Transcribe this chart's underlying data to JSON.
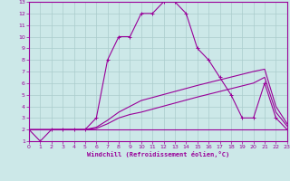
{
  "xlabel": "Windchill (Refroidissement éolien,°C)",
  "xlim": [
    0,
    23
  ],
  "ylim": [
    1,
    13
  ],
  "xticks": [
    0,
    1,
    2,
    3,
    4,
    5,
    6,
    7,
    8,
    9,
    10,
    11,
    12,
    13,
    14,
    15,
    16,
    17,
    18,
    19,
    20,
    21,
    22,
    23
  ],
  "yticks": [
    1,
    2,
    3,
    4,
    5,
    6,
    7,
    8,
    9,
    10,
    11,
    12,
    13
  ],
  "bg_color": "#cce8e8",
  "line_color": "#990099",
  "grid_color": "#aacccc",
  "line1_x": [
    0,
    1,
    2,
    3,
    4,
    5,
    6,
    7,
    8,
    9,
    10,
    11,
    12,
    13,
    14,
    15,
    16,
    17,
    18,
    19,
    20,
    21,
    22,
    23
  ],
  "line1_y": [
    2,
    1,
    2,
    2,
    2,
    2,
    3,
    8,
    10,
    10,
    12,
    12,
    13,
    13,
    12,
    9,
    8,
    6.5,
    5,
    3,
    3,
    6,
    3,
    2
  ],
  "line2_x": [
    0,
    1,
    2,
    3,
    4,
    5,
    6,
    7,
    8,
    9,
    10,
    11,
    12,
    13,
    14,
    15,
    16,
    17,
    18,
    19,
    20,
    21,
    22,
    23
  ],
  "line2_y": [
    2,
    2,
    2,
    2,
    2,
    2,
    2,
    2,
    2,
    2,
    2,
    2,
    2,
    2,
    2,
    2,
    2,
    2,
    2,
    2,
    2,
    2,
    2,
    2
  ],
  "line3_x": [
    0,
    5,
    6,
    7,
    8,
    9,
    10,
    15,
    20,
    21,
    22,
    23
  ],
  "line3_y": [
    2,
    2,
    2.1,
    2.5,
    3.0,
    3.3,
    3.5,
    4.8,
    6.0,
    6.5,
    3.5,
    2.3
  ],
  "line4_x": [
    0,
    5,
    6,
    7,
    8,
    9,
    10,
    15,
    20,
    21,
    22,
    23
  ],
  "line4_y": [
    2,
    2,
    2.2,
    2.8,
    3.5,
    4.0,
    4.5,
    5.8,
    7.0,
    7.2,
    4.0,
    2.5
  ]
}
